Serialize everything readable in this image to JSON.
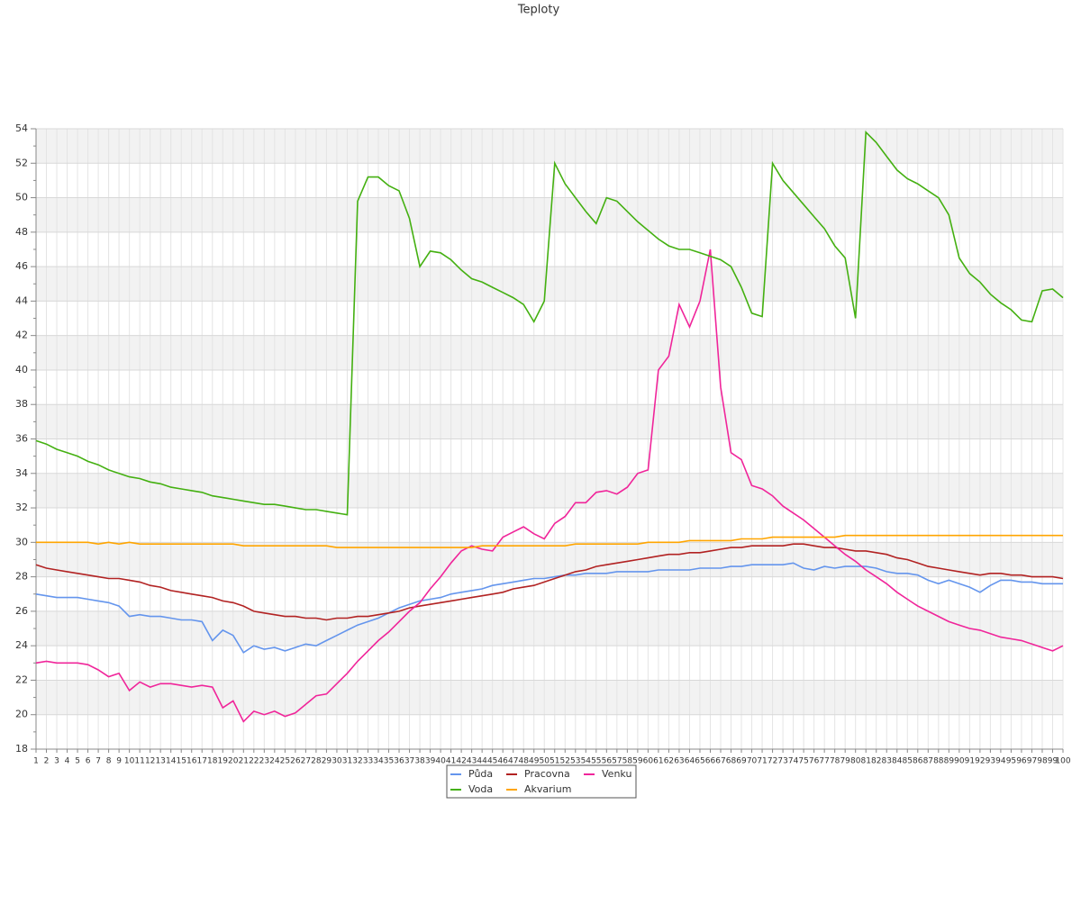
{
  "chart_data": {
    "type": "line",
    "title": "Teploty",
    "categories": [
      "1",
      "2",
      "3",
      "4",
      "5",
      "6",
      "7",
      "8",
      "9",
      "10",
      "11",
      "12",
      "13",
      "14",
      "15",
      "16",
      "17",
      "18",
      "19",
      "20",
      "21",
      "22",
      "23",
      "24",
      "25",
      "26",
      "27",
      "28",
      "29",
      "30",
      "31",
      "32",
      "33",
      "34",
      "35",
      "36",
      "37",
      "38",
      "39",
      "40",
      "41",
      "42",
      "43",
      "44",
      "45",
      "46",
      "47",
      "48",
      "49",
      "50",
      "51",
      "52",
      "53",
      "54",
      "55",
      "56",
      "57",
      "58",
      "59",
      "60",
      "61",
      "62",
      "63",
      "64",
      "65",
      "66",
      "67",
      "68",
      "69",
      "70",
      "71",
      "72",
      "73",
      "74",
      "75",
      "76",
      "77",
      "78",
      "79",
      "80",
      "81",
      "82",
      "83",
      "84",
      "85",
      "86",
      "87",
      "88",
      "89",
      "90",
      "91",
      "92",
      "93",
      "94",
      "95",
      "96",
      "97",
      "98",
      "99",
      "100"
    ],
    "ylim": [
      18,
      54
    ],
    "yticks": [
      18,
      20,
      22,
      24,
      26,
      28,
      30,
      32,
      34,
      36,
      38,
      40,
      42,
      44,
      46,
      48,
      50,
      52,
      54
    ],
    "grid": true,
    "series": [
      {
        "name": "Půda",
        "color": "#6495ed",
        "values": [
          27.0,
          26.9,
          26.8,
          26.8,
          26.8,
          26.7,
          26.6,
          26.5,
          26.3,
          25.7,
          25.8,
          25.7,
          25.7,
          25.6,
          25.5,
          25.5,
          25.4,
          24.3,
          24.9,
          24.6,
          23.6,
          24.0,
          23.8,
          23.9,
          23.7,
          23.9,
          24.1,
          24.0,
          24.3,
          24.6,
          24.9,
          25.2,
          25.4,
          25.6,
          25.9,
          26.2,
          26.4,
          26.6,
          26.7,
          26.8,
          27.0,
          27.1,
          27.2,
          27.3,
          27.5,
          27.6,
          27.7,
          27.8,
          27.9,
          27.9,
          28.0,
          28.1,
          28.1,
          28.2,
          28.2,
          28.2,
          28.3,
          28.3,
          28.3,
          28.3,
          28.4,
          28.4,
          28.4,
          28.4,
          28.5,
          28.5,
          28.5,
          28.6,
          28.6,
          28.7,
          28.7,
          28.7,
          28.7,
          28.8,
          28.5,
          28.4,
          28.6,
          28.5,
          28.6,
          28.6,
          28.6,
          28.5,
          28.3,
          28.2,
          28.2,
          28.1,
          27.8,
          27.6,
          27.8,
          27.6,
          27.4,
          27.1,
          27.5,
          27.8,
          27.8,
          27.7,
          27.7,
          27.6,
          27.6,
          27.6
        ]
      },
      {
        "name": "Pracovna",
        "color": "#b22222",
        "values": [
          28.7,
          28.5,
          28.4,
          28.3,
          28.2,
          28.1,
          28.0,
          27.9,
          27.9,
          27.8,
          27.7,
          27.5,
          27.4,
          27.2,
          27.1,
          27.0,
          26.9,
          26.8,
          26.6,
          26.5,
          26.3,
          26.0,
          25.9,
          25.8,
          25.7,
          25.7,
          25.6,
          25.6,
          25.5,
          25.6,
          25.6,
          25.7,
          25.7,
          25.8,
          25.9,
          26.0,
          26.2,
          26.3,
          26.4,
          26.5,
          26.6,
          26.7,
          26.8,
          26.9,
          27.0,
          27.1,
          27.3,
          27.4,
          27.5,
          27.7,
          27.9,
          28.1,
          28.3,
          28.4,
          28.6,
          28.7,
          28.8,
          28.9,
          29.0,
          29.1,
          29.2,
          29.3,
          29.3,
          29.4,
          29.4,
          29.5,
          29.6,
          29.7,
          29.7,
          29.8,
          29.8,
          29.8,
          29.8,
          29.9,
          29.9,
          29.8,
          29.7,
          29.7,
          29.6,
          29.5,
          29.5,
          29.4,
          29.3,
          29.1,
          29.0,
          28.8,
          28.6,
          28.5,
          28.4,
          28.3,
          28.2,
          28.1,
          28.2,
          28.2,
          28.1,
          28.1,
          28.0,
          28.0,
          28.0,
          27.9
        ]
      },
      {
        "name": "Venku",
        "color": "#f0259a",
        "values": [
          23.0,
          23.1,
          23.0,
          23.0,
          23.0,
          22.9,
          22.6,
          22.2,
          22.4,
          21.4,
          21.9,
          21.6,
          21.8,
          21.8,
          21.7,
          21.6,
          21.7,
          21.6,
          20.4,
          20.8,
          19.6,
          20.2,
          20.0,
          20.2,
          19.9,
          20.1,
          20.6,
          21.1,
          21.2,
          21.8,
          22.4,
          23.1,
          23.7,
          24.3,
          24.8,
          25.4,
          26.0,
          26.5,
          27.3,
          28.0,
          28.8,
          29.5,
          29.8,
          29.6,
          29.5,
          30.3,
          30.6,
          30.9,
          30.5,
          30.2,
          31.1,
          31.5,
          32.3,
          32.3,
          32.9,
          33.0,
          32.8,
          33.2,
          34.0,
          34.2,
          40.0,
          40.8,
          43.8,
          42.5,
          44.0,
          47.0,
          39.0,
          35.2,
          34.8,
          33.3,
          33.1,
          32.7,
          32.1,
          31.7,
          31.3,
          30.8,
          30.3,
          29.8,
          29.3,
          28.9,
          28.4,
          28.0,
          27.6,
          27.1,
          26.7,
          26.3,
          26.0,
          25.7,
          25.4,
          25.2,
          25.0,
          24.9,
          24.7,
          24.5,
          24.4,
          24.3,
          24.1,
          23.9,
          23.7,
          24.0
        ]
      },
      {
        "name": "Voda",
        "color": "#44b011",
        "values": [
          35.9,
          35.7,
          35.4,
          35.2,
          35.0,
          34.7,
          34.5,
          34.2,
          34.0,
          33.8,
          33.7,
          33.5,
          33.4,
          33.2,
          33.1,
          33.0,
          32.9,
          32.7,
          32.6,
          32.5,
          32.4,
          32.3,
          32.2,
          32.2,
          32.1,
          32.0,
          31.9,
          31.9,
          31.8,
          31.7,
          31.6,
          49.8,
          51.2,
          51.2,
          50.7,
          50.4,
          48.8,
          46.0,
          46.9,
          46.8,
          46.4,
          45.8,
          45.3,
          45.1,
          44.8,
          44.5,
          44.2,
          43.8,
          42.8,
          44.0,
          52.0,
          50.8,
          50.0,
          49.2,
          48.5,
          50.0,
          49.8,
          49.2,
          48.6,
          48.1,
          47.6,
          47.2,
          47.0,
          47.0,
          46.8,
          46.6,
          46.4,
          46.0,
          44.8,
          43.3,
          43.1,
          52.0,
          51.0,
          50.3,
          49.6,
          48.9,
          48.2,
          47.2,
          46.5,
          43.0,
          53.8,
          53.2,
          52.4,
          51.6,
          51.1,
          50.8,
          50.4,
          50.0,
          49.0,
          46.5,
          45.6,
          45.1,
          44.4,
          43.9,
          43.5,
          42.9,
          42.8,
          44.6,
          44.7,
          44.2
        ]
      },
      {
        "name": "Akvarium",
        "color": "#ffa500",
        "values": [
          30.0,
          30.0,
          30.0,
          30.0,
          30.0,
          30.0,
          29.9,
          30.0,
          29.9,
          30.0,
          29.9,
          29.9,
          29.9,
          29.9,
          29.9,
          29.9,
          29.9,
          29.9,
          29.9,
          29.9,
          29.8,
          29.8,
          29.8,
          29.8,
          29.8,
          29.8,
          29.8,
          29.8,
          29.8,
          29.7,
          29.7,
          29.7,
          29.7,
          29.7,
          29.7,
          29.7,
          29.7,
          29.7,
          29.7,
          29.7,
          29.7,
          29.7,
          29.7,
          29.8,
          29.8,
          29.8,
          29.8,
          29.8,
          29.8,
          29.8,
          29.8,
          29.8,
          29.9,
          29.9,
          29.9,
          29.9,
          29.9,
          29.9,
          29.9,
          30.0,
          30.0,
          30.0,
          30.0,
          30.1,
          30.1,
          30.1,
          30.1,
          30.1,
          30.2,
          30.2,
          30.2,
          30.3,
          30.3,
          30.3,
          30.3,
          30.3,
          30.3,
          30.3,
          30.4,
          30.4,
          30.4,
          30.4,
          30.4,
          30.4,
          30.4,
          30.4,
          30.4,
          30.4,
          30.4,
          30.4,
          30.4,
          30.4,
          30.4,
          30.4,
          30.4,
          30.4,
          30.4,
          30.4,
          30.4,
          30.4
        ]
      }
    ]
  }
}
